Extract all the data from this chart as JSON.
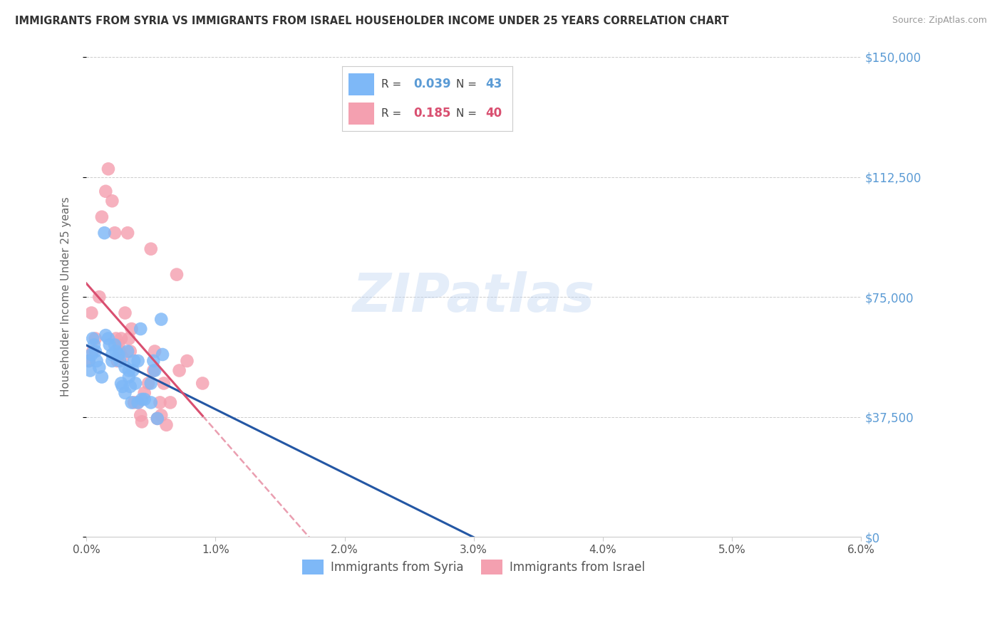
{
  "title": "IMMIGRANTS FROM SYRIA VS IMMIGRANTS FROM ISRAEL HOUSEHOLDER INCOME UNDER 25 YEARS CORRELATION CHART",
  "source": "Source: ZipAtlas.com",
  "xlabel_ticks": [
    "0.0%",
    "1.0%",
    "2.0%",
    "3.0%",
    "4.0%",
    "5.0%",
    "6.0%"
  ],
  "ylabel_label": "Householder Income Under 25 years",
  "xlim": [
    0.0,
    0.06
  ],
  "ylim": [
    0,
    150000
  ],
  "syria_R": "0.039",
  "syria_N": "43",
  "israel_R": "0.185",
  "israel_N": "40",
  "syria_color": "#7eb8f7",
  "israel_color": "#f4a0b0",
  "syria_line_color": "#2457a4",
  "israel_line_color": "#d94f70",
  "syria_x": [
    0.0002,
    0.0003,
    0.0004,
    0.0005,
    0.0006,
    0.0007,
    0.0008,
    0.001,
    0.0012,
    0.0014,
    0.0015,
    0.0017,
    0.0018,
    0.002,
    0.002,
    0.0022,
    0.0023,
    0.0025,
    0.0026,
    0.0027,
    0.0028,
    0.003,
    0.003,
    0.0032,
    0.0033,
    0.0033,
    0.0034,
    0.0035,
    0.0036,
    0.0037,
    0.0038,
    0.004,
    0.004,
    0.0042,
    0.0043,
    0.0045,
    0.005,
    0.005,
    0.0052,
    0.0053,
    0.0055,
    0.0058,
    0.0059
  ],
  "syria_y": [
    55000,
    52000,
    57000,
    62000,
    60000,
    58000,
    55000,
    53000,
    50000,
    95000,
    63000,
    62000,
    60000,
    57000,
    55000,
    60000,
    58000,
    57000,
    55000,
    48000,
    47000,
    53000,
    45000,
    58000,
    52000,
    50000,
    47000,
    42000,
    52000,
    55000,
    48000,
    55000,
    42000,
    65000,
    43000,
    43000,
    42000,
    48000,
    55000,
    52000,
    37000,
    68000,
    57000
  ],
  "israel_x": [
    0.0002,
    0.0004,
    0.0005,
    0.0007,
    0.001,
    0.0012,
    0.0015,
    0.0017,
    0.002,
    0.0022,
    0.0023,
    0.0024,
    0.0025,
    0.0026,
    0.0027,
    0.0028,
    0.003,
    0.0032,
    0.0033,
    0.0034,
    0.0035,
    0.0037,
    0.004,
    0.0042,
    0.0043,
    0.0045,
    0.0048,
    0.005,
    0.0052,
    0.0053,
    0.0055,
    0.0057,
    0.0058,
    0.006,
    0.0062,
    0.0065,
    0.007,
    0.0072,
    0.0078,
    0.009
  ],
  "israel_y": [
    55000,
    70000,
    58000,
    62000,
    75000,
    100000,
    108000,
    115000,
    105000,
    95000,
    62000,
    55000,
    60000,
    58000,
    62000,
    56000,
    70000,
    95000,
    62000,
    58000,
    65000,
    42000,
    42000,
    38000,
    36000,
    45000,
    48000,
    90000,
    52000,
    58000,
    37000,
    42000,
    38000,
    48000,
    35000,
    42000,
    82000,
    52000,
    55000,
    48000
  ],
  "ytick_vals": [
    0,
    37500,
    75000,
    112500,
    150000
  ],
  "ytick_labels": [
    "$0",
    "$37,500",
    "$75,000",
    "$112,500",
    "$150,000"
  ]
}
